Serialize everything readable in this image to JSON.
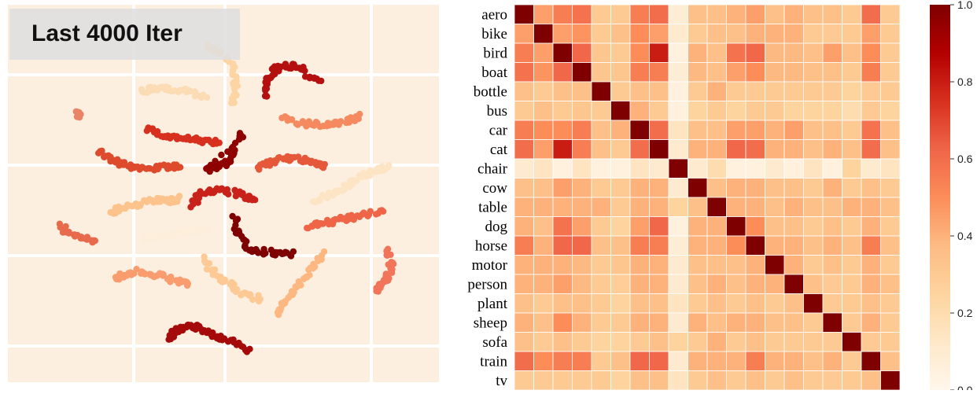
{
  "chart_data": [
    {
      "type": "scatter",
      "title": "Last 4000 Iter",
      "grid": true,
      "xlabel": "",
      "ylabel": "",
      "clusters": [
        {
          "color": "#8f0000",
          "points": [
            [
              298,
              187
            ],
            [
              294,
              200
            ],
            [
              285,
              208
            ],
            [
              272,
              213
            ],
            [
              263,
              216
            ],
            [
              304,
              176
            ],
            [
              308,
              170
            ]
          ]
        },
        {
          "color": "#7f0000",
          "points": [
            [
              298,
              278
            ],
            [
              302,
              296
            ],
            [
              312,
              311
            ],
            [
              327,
              319
            ],
            [
              342,
              321
            ],
            [
              358,
              322
            ],
            [
              370,
              322
            ]
          ]
        },
        {
          "color": "#b51010",
          "points": [
            [
              337,
              124
            ],
            [
              338,
              108
            ],
            [
              342,
              96
            ],
            [
              352,
              88
            ],
            [
              364,
              83
            ],
            [
              378,
              85
            ],
            [
              392,
              96
            ],
            [
              407,
              102
            ]
          ]
        },
        {
          "color": "#a50b0b",
          "points": [
            [
              213,
              429
            ],
            [
              224,
              420
            ],
            [
              236,
              415
            ],
            [
              250,
              416
            ],
            [
              264,
              424
            ],
            [
              280,
              430
            ],
            [
              296,
              436
            ],
            [
              315,
              446
            ]
          ]
        },
        {
          "color": "#c8221a",
          "points": [
            [
              244,
              262
            ],
            [
              252,
              250
            ],
            [
              265,
              242
            ],
            [
              280,
              242
            ],
            [
              296,
              245
            ],
            [
              312,
              250
            ],
            [
              322,
              252
            ]
          ]
        },
        {
          "color": "#d7301f",
          "points": [
            [
              185,
              163
            ],
            [
              200,
              170
            ],
            [
              216,
              174
            ],
            [
              234,
              176
            ],
            [
              250,
              178
            ],
            [
              264,
              180
            ],
            [
              276,
              181
            ]
          ]
        },
        {
          "color": "#dd4a2c",
          "points": [
            [
              124,
              194
            ],
            [
              138,
              201
            ],
            [
              152,
              208
            ],
            [
              167,
              212
            ],
            [
              182,
              214
            ],
            [
              198,
              213
            ],
            [
              212,
              212
            ],
            [
              228,
              213
            ]
          ]
        },
        {
          "color": "#e5583a",
          "points": [
            [
              327,
              214
            ],
            [
              340,
              207
            ],
            [
              354,
              203
            ],
            [
              370,
              202
            ],
            [
              386,
              204
            ],
            [
              400,
              207
            ],
            [
              412,
              210
            ]
          ]
        },
        {
          "color": "#ef6548",
          "points": [
            [
              390,
              287
            ],
            [
              404,
              285
            ],
            [
              420,
              282
            ],
            [
              436,
              279
            ],
            [
              452,
              276
            ],
            [
              468,
              272
            ],
            [
              488,
              270
            ]
          ]
        },
        {
          "color": "#e86a4c",
          "points": [
            [
              78,
              288
            ],
            [
              86,
              296
            ],
            [
              100,
              300
            ],
            [
              112,
              304
            ],
            [
              118,
              307
            ]
          ]
        },
        {
          "color": "#f0755a",
          "points": [
            [
              494,
              320
            ],
            [
              497,
              334
            ],
            [
              496,
              346
            ],
            [
              492,
              356
            ],
            [
              482,
              364
            ],
            [
              478,
              368
            ]
          ]
        },
        {
          "color": "#f58a60",
          "points": [
            [
              360,
              150
            ],
            [
              375,
              156
            ],
            [
              392,
              158
            ],
            [
              410,
              158
            ],
            [
              428,
              157
            ],
            [
              445,
              153
            ],
            [
              460,
              147
            ]
          ]
        },
        {
          "color": "#f99d6f",
          "points": [
            [
              146,
              354
            ],
            [
              160,
              349
            ],
            [
              176,
              345
            ],
            [
              192,
              348
            ],
            [
              208,
              352
            ],
            [
              224,
              357
            ],
            [
              240,
              363
            ]
          ]
        },
        {
          "color": "#e98466",
          "points": [
            [
              97,
              140
            ],
            [
              102,
              150
            ]
          ]
        },
        {
          "color": "#fdb882",
          "points": [
            [
              352,
              400
            ],
            [
              362,
              384
            ],
            [
              374,
              370
            ],
            [
              386,
              354
            ],
            [
              398,
              338
            ],
            [
              410,
              322
            ]
          ]
        },
        {
          "color": "#fdc38d",
          "points": [
            [
              140,
              271
            ],
            [
              152,
              266
            ],
            [
              168,
              262
            ],
            [
              184,
              257
            ],
            [
              200,
              254
            ],
            [
              216,
              255
            ],
            [
              230,
              252
            ]
          ]
        },
        {
          "color": "#fdc995",
          "points": [
            [
              259,
              330
            ],
            [
              272,
              346
            ],
            [
              286,
              358
            ],
            [
              300,
              368
            ],
            [
              316,
              376
            ],
            [
              332,
              380
            ]
          ]
        },
        {
          "color": "#fdd4a4",
          "points": [
            [
              262,
              58
            ],
            [
              280,
              66
            ],
            [
              292,
              78
            ],
            [
              299,
              96
            ],
            [
              300,
              115
            ],
            [
              297,
              133
            ]
          ]
        },
        {
          "color": "#fcdcb4",
          "points": [
            [
              180,
              117
            ],
            [
              196,
              112
            ],
            [
              212,
              113
            ],
            [
              228,
              114
            ],
            [
              246,
              119
            ],
            [
              262,
              124
            ]
          ]
        },
        {
          "color": "#fde4c4",
          "points": [
            [
              400,
              258
            ],
            [
              416,
              249
            ],
            [
              432,
              240
            ],
            [
              448,
              232
            ],
            [
              466,
              222
            ],
            [
              480,
              216
            ],
            [
              492,
              212
            ]
          ]
        },
        {
          "color": "#fdeedc",
          "points": [
            [
              182,
              303
            ],
            [
              198,
              300
            ],
            [
              214,
              298
            ],
            [
              230,
              296
            ],
            [
              246,
              293
            ],
            [
              262,
              290
            ]
          ]
        }
      ]
    },
    {
      "type": "heatmap",
      "title": "",
      "categories": [
        "aero",
        "bike",
        "bird",
        "boat",
        "bottle",
        "bus",
        "car",
        "cat",
        "chair",
        "cow",
        "table",
        "dog",
        "horse",
        "motor",
        "person",
        "plant",
        "sheep",
        "sofa",
        "train",
        "tv"
      ],
      "values": [
        [
          1.0,
          0.45,
          0.55,
          0.58,
          0.3,
          0.3,
          0.55,
          0.6,
          0.08,
          0.35,
          0.35,
          0.4,
          0.45,
          0.35,
          0.4,
          0.35,
          0.35,
          0.3,
          0.6,
          0.3
        ],
        [
          0.45,
          1.0,
          0.45,
          0.48,
          0.3,
          0.35,
          0.5,
          0.45,
          0.1,
          0.3,
          0.35,
          0.35,
          0.4,
          0.4,
          0.4,
          0.3,
          0.3,
          0.3,
          0.45,
          0.3
        ],
        [
          0.55,
          0.45,
          1.0,
          0.62,
          0.32,
          0.3,
          0.5,
          0.8,
          0.05,
          0.4,
          0.35,
          0.58,
          0.62,
          0.38,
          0.38,
          0.35,
          0.45,
          0.35,
          0.5,
          0.3
        ],
        [
          0.58,
          0.48,
          0.62,
          1.0,
          0.32,
          0.32,
          0.55,
          0.55,
          0.08,
          0.38,
          0.35,
          0.45,
          0.5,
          0.38,
          0.38,
          0.35,
          0.35,
          0.3,
          0.55,
          0.3
        ],
        [
          0.35,
          0.3,
          0.35,
          0.35,
          1.0,
          0.3,
          0.35,
          0.35,
          0.05,
          0.3,
          0.4,
          0.3,
          0.3,
          0.3,
          0.3,
          0.3,
          0.3,
          0.25,
          0.3,
          0.3
        ],
        [
          0.3,
          0.35,
          0.3,
          0.32,
          0.3,
          1.0,
          0.4,
          0.3,
          0.05,
          0.25,
          0.3,
          0.25,
          0.3,
          0.3,
          0.25,
          0.25,
          0.25,
          0.2,
          0.3,
          0.25
        ],
        [
          0.55,
          0.5,
          0.5,
          0.55,
          0.35,
          0.4,
          1.0,
          0.6,
          0.15,
          0.35,
          0.35,
          0.45,
          0.45,
          0.4,
          0.45,
          0.35,
          0.35,
          0.3,
          0.58,
          0.35
        ],
        [
          0.6,
          0.45,
          0.8,
          0.55,
          0.35,
          0.3,
          0.6,
          1.0,
          0.1,
          0.4,
          0.4,
          0.62,
          0.6,
          0.4,
          0.4,
          0.35,
          0.4,
          0.35,
          0.6,
          0.35
        ],
        [
          0.1,
          0.15,
          0.05,
          0.15,
          0.05,
          0.05,
          0.15,
          0.1,
          1.0,
          0.1,
          0.2,
          0.05,
          0.05,
          0.1,
          0.05,
          0.15,
          0.05,
          0.25,
          0.1,
          0.15
        ],
        [
          0.35,
          0.35,
          0.45,
          0.4,
          0.3,
          0.3,
          0.4,
          0.4,
          0.1,
          1.0,
          0.35,
          0.4,
          0.4,
          0.35,
          0.35,
          0.3,
          0.4,
          0.3,
          0.35,
          0.3
        ],
        [
          0.4,
          0.4,
          0.4,
          0.4,
          0.4,
          0.3,
          0.4,
          0.4,
          0.25,
          0.35,
          1.0,
          0.4,
          0.4,
          0.35,
          0.4,
          0.35,
          0.35,
          0.4,
          0.4,
          0.35
        ],
        [
          0.4,
          0.35,
          0.58,
          0.45,
          0.3,
          0.25,
          0.45,
          0.62,
          0.05,
          0.4,
          0.4,
          1.0,
          0.5,
          0.35,
          0.35,
          0.3,
          0.35,
          0.3,
          0.4,
          0.3
        ],
        [
          0.55,
          0.4,
          0.62,
          0.62,
          0.35,
          0.35,
          0.55,
          0.55,
          0.08,
          0.4,
          0.4,
          0.5,
          1.0,
          0.4,
          0.4,
          0.35,
          0.4,
          0.35,
          0.55,
          0.35
        ],
        [
          0.4,
          0.4,
          0.4,
          0.38,
          0.3,
          0.32,
          0.4,
          0.4,
          0.1,
          0.35,
          0.35,
          0.35,
          0.4,
          1.0,
          0.4,
          0.3,
          0.35,
          0.3,
          0.4,
          0.3
        ],
        [
          0.4,
          0.4,
          0.45,
          0.38,
          0.3,
          0.28,
          0.4,
          0.4,
          0.1,
          0.35,
          0.4,
          0.35,
          0.4,
          0.4,
          1.0,
          0.35,
          0.3,
          0.3,
          0.4,
          0.35
        ],
        [
          0.35,
          0.3,
          0.35,
          0.35,
          0.3,
          0.25,
          0.35,
          0.35,
          0.15,
          0.3,
          0.35,
          0.3,
          0.35,
          0.3,
          0.35,
          1.0,
          0.3,
          0.3,
          0.35,
          0.3
        ],
        [
          0.4,
          0.35,
          0.5,
          0.4,
          0.3,
          0.3,
          0.4,
          0.4,
          0.1,
          0.4,
          0.35,
          0.4,
          0.4,
          0.35,
          0.35,
          0.3,
          1.0,
          0.3,
          0.4,
          0.3
        ],
        [
          0.35,
          0.3,
          0.35,
          0.3,
          0.25,
          0.25,
          0.3,
          0.35,
          0.25,
          0.3,
          0.4,
          0.3,
          0.35,
          0.3,
          0.3,
          0.3,
          0.3,
          1.0,
          0.3,
          0.3
        ],
        [
          0.6,
          0.5,
          0.55,
          0.55,
          0.3,
          0.35,
          0.62,
          0.62,
          0.1,
          0.4,
          0.4,
          0.4,
          0.55,
          0.4,
          0.4,
          0.35,
          0.4,
          0.3,
          1.0,
          0.35
        ],
        [
          0.3,
          0.3,
          0.3,
          0.3,
          0.3,
          0.25,
          0.35,
          0.35,
          0.15,
          0.3,
          0.35,
          0.3,
          0.35,
          0.3,
          0.35,
          0.3,
          0.3,
          0.3,
          0.35,
          1.0
        ]
      ],
      "vmin": 0.0,
      "vmax": 1.0,
      "colorbar_ticks": [
        "0.0",
        "0.2",
        "0.4",
        "0.6",
        "0.8",
        "1.0"
      ],
      "colormap": "OrRd"
    }
  ]
}
